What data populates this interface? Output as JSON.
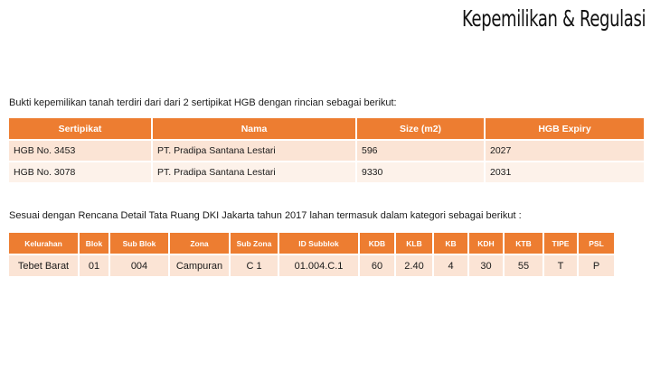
{
  "slide": {
    "title": "Kepemilikan & Regulasi"
  },
  "ownership": {
    "intro": "Bukti kepemilikan tanah terdiri dari dari 2 sertipikat HGB dengan rincian sebagai berikut:",
    "headers": [
      "Sertipikat",
      "Nama",
      "Size (m2)",
      "HGB Expiry"
    ],
    "rows": [
      [
        "HGB No. 3453",
        "PT. Pradipa Santana Lestari",
        "596",
        "2027"
      ],
      [
        "HGB No. 3078",
        "PT. Pradipa Santana Lestari",
        "9330",
        "2031"
      ]
    ]
  },
  "zoning": {
    "intro": "Sesuai dengan Rencana Detail Tata Ruang DKI Jakarta tahun 2017 lahan termasuk dalam kategori sebagai berikut :",
    "headers": [
      "Kelurahan",
      "Blok",
      "Sub Blok",
      "Zona",
      "Sub Zona",
      "ID Subblok",
      "KDB",
      "KLB",
      "KB",
      "KDH",
      "KTB",
      "TIPE",
      "PSL"
    ],
    "rows": [
      [
        "Tebet Barat",
        "01",
        "004",
        "Campuran",
        "C 1",
        "01.004.C.1",
        "60",
        "2.40",
        "4",
        "30",
        "55",
        "T",
        "P"
      ]
    ]
  },
  "colors": {
    "header": "#ed7d31",
    "row_dark": "#fbe4d5",
    "row_light": "#fdf2ea"
  }
}
